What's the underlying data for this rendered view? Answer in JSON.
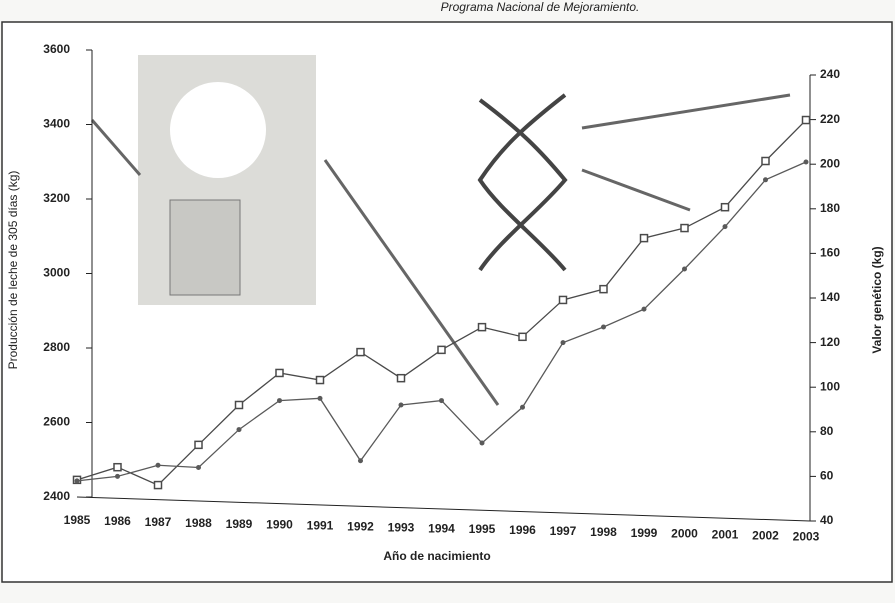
{
  "caption": "Programa Nacional de Mejoramiento.",
  "chart_data": {
    "type": "line",
    "xlabel": "Año de nacimiento",
    "ylabel": "Producción de leche de 305 días (kg)",
    "y2label": "Valor genético (kg)",
    "categories": [
      "1985",
      "1986",
      "1987",
      "1988",
      "1989",
      "1990",
      "1991",
      "1992",
      "1993",
      "1994",
      "1995",
      "1996",
      "1997",
      "1998",
      "1999",
      "2000",
      "2001",
      "2002",
      "2003"
    ],
    "series": [
      {
        "color": "#4a4a4a",
        "marker": "square",
        "values": [
          2446,
          2480,
          2432,
          2540,
          2647,
          2733,
          2714,
          2789,
          2719,
          2795,
          2856,
          2830,
          2929,
          2958,
          3095,
          3122,
          3178,
          3302,
          3412
        ]
      },
      {
        "color": "#5a5a5a",
        "marker": "circle",
        "axis": "y2",
        "values": [
          58,
          60,
          65,
          64,
          81,
          94,
          95,
          67,
          92,
          94,
          75,
          91,
          120,
          127,
          135,
          153,
          172,
          193,
          201
        ]
      }
    ],
    "ylim": [
      2400,
      3600
    ],
    "yticks": [
      2400,
      2600,
      2800,
      3000,
      3200,
      3400,
      3600
    ],
    "y2lim": [
      40,
      240
    ],
    "y2ticks": [
      40,
      60,
      80,
      100,
      120,
      140,
      160,
      180,
      200,
      220,
      240
    ]
  }
}
